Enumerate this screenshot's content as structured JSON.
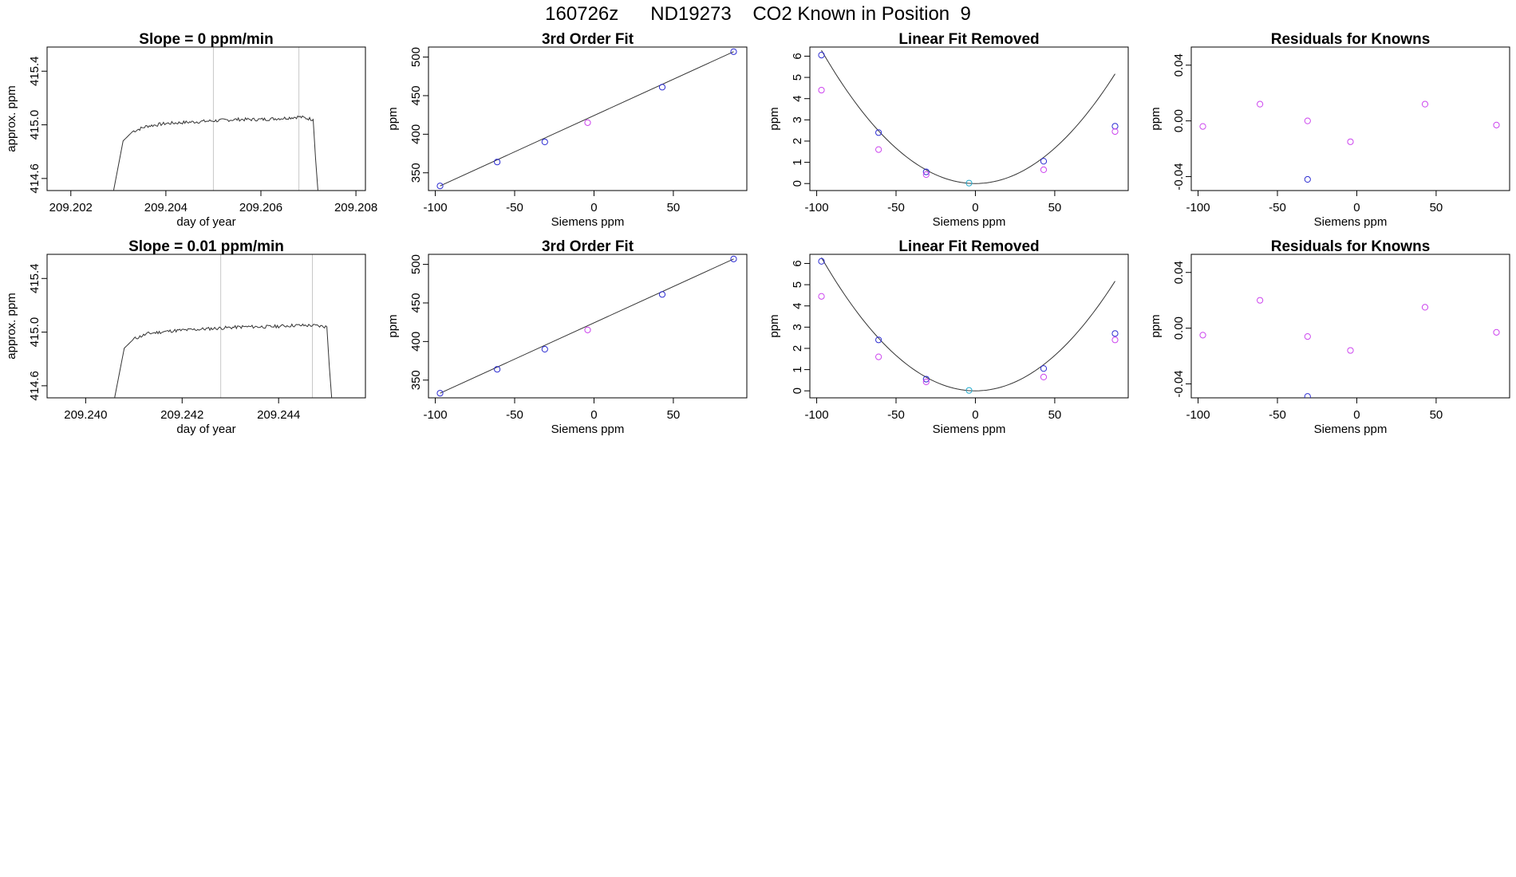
{
  "page_title": "160726z      ND19273    CO2 Known in Position  9",
  "colors": {
    "frame": "#000000",
    "line": "#333333",
    "ref_line": "#c8c8c8",
    "blue_point": "#2d2dd2",
    "magenta_point": "#cc44ee",
    "cyan_point": "#22aacc"
  },
  "chart_data": [
    {
      "type": "line",
      "title": "Slope =  0  ppm/min",
      "xlabel": "day of year",
      "ylabel": "approx. ppm",
      "xlim": [
        209.2015,
        209.2082
      ],
      "ylim": [
        414.51,
        415.58
      ],
      "xticks": [
        209.202,
        209.204,
        209.206,
        209.208
      ],
      "xtick_labels": [
        "209.202",
        "209.204",
        "209.206",
        "209.208"
      ],
      "yticks": [
        414.6,
        415.0,
        415.4
      ],
      "ytick_labels": [
        "414.6",
        "415.0",
        "415.4"
      ],
      "vlines": [
        209.205,
        209.2068
      ],
      "series": [
        {
          "color": "line",
          "x": [
            209.2029,
            209.2031,
            209.2033,
            209.2036,
            209.204,
            209.2045,
            209.205,
            209.2055,
            209.206,
            209.2065,
            209.2068,
            209.2071,
            209.20715,
            209.2072
          ],
          "y": [
            414.51,
            414.88,
            414.95,
            414.99,
            415.01,
            415.02,
            415.03,
            415.04,
            415.04,
            415.05,
            415.06,
            415.04,
            414.75,
            414.51
          ]
        }
      ]
    },
    {
      "type": "scatter",
      "title": "3rd Order Fit",
      "xlabel": "Siemens ppm",
      "ylabel": "ppm",
      "xlim": [
        -104.3,
        96.3
      ],
      "ylim": [
        327,
        513
      ],
      "xticks": [
        -100,
        -50,
        0,
        50
      ],
      "xtick_labels": [
        "-100",
        "-50",
        "0",
        "50"
      ],
      "yticks": [
        350,
        400,
        450,
        500
      ],
      "ytick_labels": [
        "350",
        "400",
        "450",
        "500"
      ],
      "fit_line": {
        "x": [
          -97,
          88
        ],
        "y": [
          333,
          507
        ]
      },
      "series": [
        {
          "color": "blue_point",
          "x": [
            -97,
            -61,
            -31,
            43,
            88
          ],
          "y": [
            333,
            364,
            390,
            461,
            507
          ]
        },
        {
          "color": "magenta_point",
          "x": [
            -4
          ],
          "y": [
            415
          ]
        }
      ]
    },
    {
      "type": "scatter",
      "title": "Linear Fit Removed",
      "xlabel": "Siemens ppm",
      "ylabel": "ppm",
      "xlim": [
        -104.3,
        96.3
      ],
      "ylim": [
        -0.33,
        6.43
      ],
      "xticks": [
        -100,
        -50,
        0,
        50
      ],
      "xtick_labels": [
        "-100",
        "-50",
        "0",
        "50"
      ],
      "yticks": [
        0,
        1,
        2,
        3,
        4,
        5,
        6
      ],
      "ytick_labels": [
        "0",
        "1",
        "2",
        "3",
        "4",
        "5",
        "6"
      ],
      "fit_curve": {
        "vertex_x": 0,
        "coef": 0.000667,
        "x_range": [
          -97,
          88
        ]
      },
      "series": [
        {
          "color": "blue_point",
          "x": [
            -97,
            -61,
            -31,
            43,
            88
          ],
          "y": [
            6.05,
            2.4,
            0.55,
            1.05,
            2.7
          ]
        },
        {
          "color": "magenta_point",
          "x": [
            -97,
            -61,
            -31,
            43,
            88
          ],
          "y": [
            4.4,
            1.6,
            0.42,
            0.65,
            2.45
          ]
        },
        {
          "color": "cyan_point",
          "x": [
            -4
          ],
          "y": [
            0.02
          ]
        }
      ]
    },
    {
      "type": "scatter",
      "title": "Residuals for Knowns",
      "xlabel": "Siemens ppm",
      "ylabel": "ppm",
      "xlim": [
        -104.3,
        96.3
      ],
      "ylim": [
        -0.05,
        0.053
      ],
      "xticks": [
        -100,
        -50,
        0,
        50
      ],
      "xtick_labels": [
        "-100",
        "-50",
        "0",
        "50"
      ],
      "yticks": [
        -0.04,
        0.0,
        0.04
      ],
      "ytick_labels": [
        "-0.04",
        "0.00",
        "0.04"
      ],
      "series": [
        {
          "color": "magenta_point",
          "x": [
            -97,
            -61,
            -31,
            -4,
            43,
            88
          ],
          "y": [
            -0.004,
            0.012,
            0.0,
            -0.015,
            0.012,
            -0.003
          ]
        },
        {
          "color": "blue_point",
          "x": [
            -31
          ],
          "y": [
            -0.042
          ]
        }
      ]
    },
    {
      "type": "line",
      "title": "Slope =  0.01  ppm/min",
      "xlabel": "day of year",
      "ylabel": "approx. ppm",
      "xlim": [
        209.2392,
        209.2458
      ],
      "ylim": [
        414.51,
        415.58
      ],
      "xticks": [
        209.24,
        209.242,
        209.244
      ],
      "xtick_labels": [
        "209.240",
        "209.242",
        "209.244"
      ],
      "vlines": [
        209.2428,
        209.2447
      ],
      "series": [
        {
          "color": "line",
          "x": [
            209.2406,
            209.2408,
            209.241,
            209.2413,
            209.2418,
            209.2423,
            209.2428,
            209.2433,
            209.2438,
            209.2443,
            209.2447,
            209.245,
            209.24505,
            209.2451
          ],
          "y": [
            414.51,
            414.88,
            414.95,
            414.99,
            415.01,
            415.02,
            415.03,
            415.04,
            415.04,
            415.05,
            415.05,
            415.04,
            414.75,
            414.51
          ]
        }
      ],
      "yticks": [
        414.6,
        415.0,
        415.4
      ],
      "ytick_labels": [
        "414.6",
        "415.0",
        "415.4"
      ]
    },
    {
      "type": "scatter",
      "title": "3rd Order Fit",
      "xlabel": "Siemens ppm",
      "ylabel": "ppm",
      "xlim": [
        -104.3,
        96.3
      ],
      "ylim": [
        327,
        513
      ],
      "xticks": [
        -100,
        -50,
        0,
        50
      ],
      "xtick_labels": [
        "-100",
        "-50",
        "0",
        "50"
      ],
      "yticks": [
        350,
        400,
        450,
        500
      ],
      "ytick_labels": [
        "350",
        "400",
        "450",
        "500"
      ],
      "fit_line": {
        "x": [
          -97,
          88
        ],
        "y": [
          333,
          507
        ]
      },
      "series": [
        {
          "color": "blue_point",
          "x": [
            -97,
            -61,
            -31,
            43,
            88
          ],
          "y": [
            333,
            364,
            390,
            461,
            507
          ]
        },
        {
          "color": "magenta_point",
          "x": [
            -4
          ],
          "y": [
            415
          ]
        }
      ]
    },
    {
      "type": "scatter",
      "title": "Linear Fit Removed",
      "xlabel": "Siemens ppm",
      "ylabel": "ppm",
      "xlim": [
        -104.3,
        96.3
      ],
      "ylim": [
        -0.33,
        6.43
      ],
      "xticks": [
        -100,
        -50,
        0,
        50
      ],
      "xtick_labels": [
        "-100",
        "-50",
        "0",
        "50"
      ],
      "yticks": [
        0,
        1,
        2,
        3,
        4,
        5,
        6
      ],
      "ytick_labels": [
        "0",
        "1",
        "2",
        "3",
        "4",
        "5",
        "6"
      ],
      "fit_curve": {
        "vertex_x": 0,
        "coef": 0.000667,
        "x_range": [
          -97,
          88
        ]
      },
      "series": [
        {
          "color": "blue_point",
          "x": [
            -97,
            -61,
            -31,
            43,
            88
          ],
          "y": [
            6.1,
            2.4,
            0.55,
            1.05,
            2.7
          ]
        },
        {
          "color": "magenta_point",
          "x": [
            -97,
            -61,
            -31,
            43,
            88
          ],
          "y": [
            4.45,
            1.6,
            0.42,
            0.65,
            2.4
          ]
        },
        {
          "color": "cyan_point",
          "x": [
            -4
          ],
          "y": [
            0.02
          ]
        }
      ]
    },
    {
      "type": "scatter",
      "title": "Residuals for Knowns",
      "xlabel": "Siemens ppm",
      "ylabel": "ppm",
      "xlim": [
        -104.3,
        96.3
      ],
      "ylim": [
        -0.05,
        0.053
      ],
      "xticks": [
        -100,
        -50,
        0,
        50
      ],
      "xtick_labels": [
        "-100",
        "-50",
        "0",
        "50"
      ],
      "yticks": [
        -0.04,
        0.0,
        0.04
      ],
      "ytick_labels": [
        "-0.04",
        "0.00",
        "0.04"
      ],
      "series": [
        {
          "color": "magenta_point",
          "x": [
            -97,
            -61,
            -31,
            -4,
            43,
            88
          ],
          "y": [
            -0.005,
            0.02,
            -0.006,
            -0.016,
            0.015,
            -0.003
          ]
        },
        {
          "color": "blue_point",
          "x": [
            -31
          ],
          "y": [
            -0.049
          ]
        }
      ]
    }
  ]
}
